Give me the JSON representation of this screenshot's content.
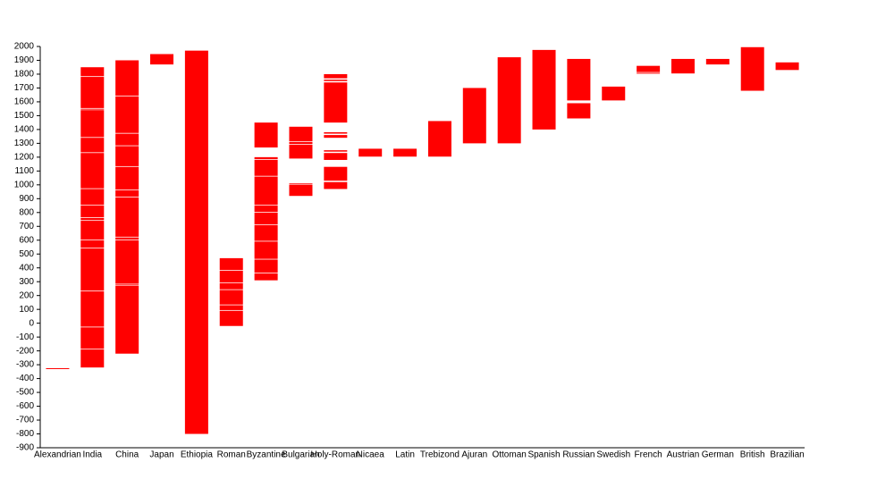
{
  "chart_data": {
    "type": "floating-bar",
    "categories": [
      "Alexandrian",
      "India",
      "China",
      "Japan",
      "Ethiopia",
      "Roman",
      "Byzantine",
      "Bulgarian",
      "Holy-Roman",
      "Nicaea",
      "Latin",
      "Trebizond",
      "Ajuran",
      "Ottoman",
      "Spanish",
      "Russian",
      "Swedish",
      "French",
      "Austrian",
      "German",
      "British",
      "Brazilian"
    ],
    "ranges": [
      [
        [
          -330,
          -325
        ]
      ],
      [
        [
          -320,
          -190
        ],
        [
          -185,
          -30
        ],
        [
          -25,
          230
        ],
        [
          235,
          540
        ],
        [
          545,
          600
        ],
        [
          605,
          740
        ],
        [
          745,
          760
        ],
        [
          765,
          850
        ],
        [
          855,
          970
        ],
        [
          975,
          1230
        ],
        [
          1235,
          1340
        ],
        [
          1345,
          1540
        ],
        [
          1545,
          1550
        ],
        [
          1555,
          1780
        ],
        [
          1785,
          1850
        ]
      ],
      [
        [
          -220,
          270
        ],
        [
          275,
          280
        ],
        [
          285,
          600
        ],
        [
          605,
          620
        ],
        [
          625,
          910
        ],
        [
          915,
          960
        ],
        [
          965,
          1130
        ],
        [
          1135,
          1280
        ],
        [
          1285,
          1370
        ],
        [
          1375,
          1640
        ],
        [
          1645,
          1900
        ]
      ],
      [
        [
          1870,
          1945
        ]
      ],
      [
        [
          -800,
          1970
        ]
      ],
      [
        [
          -20,
          90
        ],
        [
          95,
          130
        ],
        [
          135,
          240
        ],
        [
          245,
          290
        ],
        [
          295,
          380
        ],
        [
          385,
          470
        ]
      ],
      [
        [
          310,
          360
        ],
        [
          365,
          460
        ],
        [
          465,
          590
        ],
        [
          595,
          710
        ],
        [
          715,
          800
        ],
        [
          805,
          850
        ],
        [
          855,
          1060
        ],
        [
          1065,
          1180
        ],
        [
          1185,
          1200
        ],
        [
          1270,
          1450
        ]
      ],
      [
        [
          920,
          1000
        ],
        [
          1005,
          1010
        ],
        [
          1190,
          1290
        ],
        [
          1295,
          1310
        ],
        [
          1315,
          1420
        ]
      ],
      [
        [
          970,
          1020
        ],
        [
          1030,
          1130
        ],
        [
          1180,
          1230
        ],
        [
          1240,
          1250
        ],
        [
          1340,
          1360
        ],
        [
          1370,
          1380
        ],
        [
          1450,
          1740
        ],
        [
          1750,
          1760
        ],
        [
          1770,
          1800
        ]
      ],
      [
        [
          1204,
          1261
        ]
      ],
      [
        [
          1204,
          1261
        ]
      ],
      [
        [
          1204,
          1461
        ]
      ],
      [
        [
          1300,
          1700
        ]
      ],
      [
        [
          1300,
          1922
        ]
      ],
      [
        [
          1400,
          1975
        ]
      ],
      [
        [
          1480,
          1590
        ],
        [
          1610,
          1910
        ]
      ],
      [
        [
          1610,
          1710
        ]
      ],
      [
        [
          1805,
          1810
        ],
        [
          1815,
          1860
        ]
      ],
      [
        [
          1805,
          1910
        ]
      ],
      [
        [
          1870,
          1910
        ]
      ],
      [
        [
          1680,
          1995
        ]
      ],
      [
        [
          1830,
          1885
        ]
      ]
    ],
    "color": "#ff0000",
    "ylim": [
      -900,
      2000
    ],
    "yticks": [
      -900,
      -800,
      -700,
      -600,
      -500,
      -400,
      -300,
      -200,
      -100,
      0,
      100,
      200,
      300,
      400,
      500,
      600,
      700,
      800,
      900,
      1000,
      1100,
      1200,
      1300,
      1400,
      1500,
      1600,
      1700,
      1800,
      1900,
      2000
    ]
  }
}
